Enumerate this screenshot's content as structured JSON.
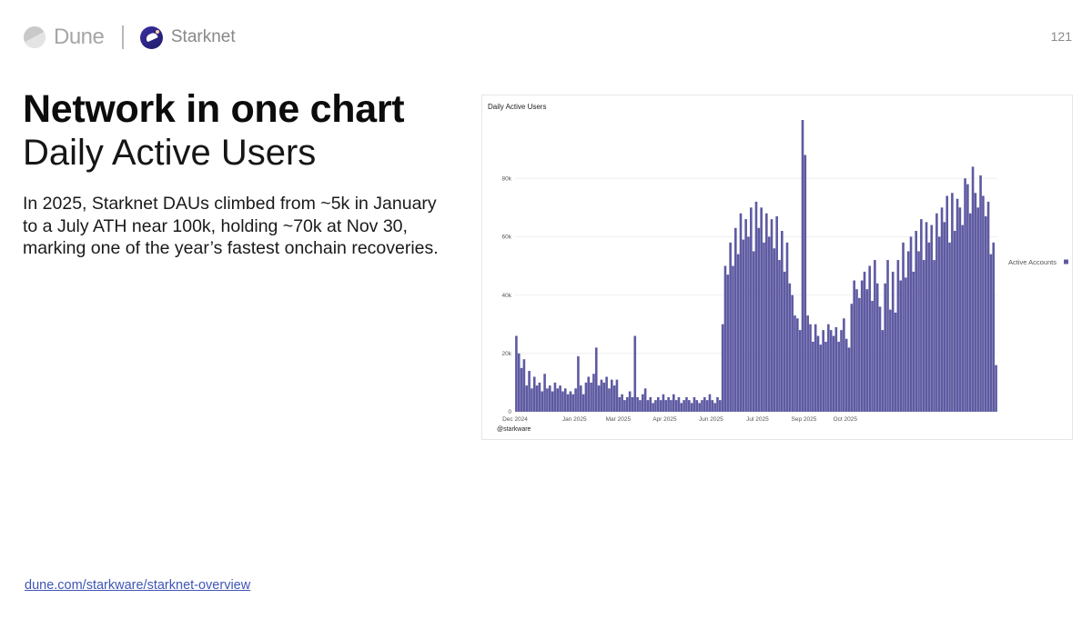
{
  "header": {
    "dune_label": "Dune",
    "starknet_label": "Starknet",
    "page_number": "121"
  },
  "slide": {
    "title": "Network in one chart",
    "subtitle": "Daily Active Users",
    "body_lines": [
      "In 2025, Starknet DAUs climbed from ~5k in January",
      "to a July ATH near 100k, holding ~70k at Nov 30,",
      "marking one of the year’s fastest onchain recoveries."
    ],
    "link": "dune.com/starkware/starknet-overview"
  },
  "colors": {
    "bar": "#5e5aa2",
    "grid": "#ececec"
  },
  "chart_data": {
    "type": "bar",
    "title": "Daily Active Users",
    "xlabel": "",
    "ylabel": "",
    "ylim": [
      0,
      100000
    ],
    "y_ticks": [
      0,
      20000,
      40000,
      60000,
      80000
    ],
    "y_tick_labels": [
      "0",
      "20k",
      "40k",
      "60k",
      "80k"
    ],
    "x_tick_labels": [
      "Dec 2024",
      "Jan 2025",
      "Mar 2025",
      "Apr 2025",
      "Jun 2025",
      "Jul 2025",
      "Sep 2025",
      "Oct 2025"
    ],
    "x_tick_category_index": [
      0,
      23,
      40,
      58,
      76,
      94,
      112,
      128
    ],
    "legend": "Active Accounts",
    "legend_position": "right",
    "grid": true,
    "credit": "@starkware",
    "series": [
      {
        "name": "Active Accounts",
        "values": [
          26000,
          20000,
          15000,
          18000,
          9000,
          14000,
          8000,
          12000,
          9000,
          10000,
          7000,
          13000,
          8000,
          9000,
          7000,
          10000,
          8000,
          9000,
          7000,
          8000,
          6000,
          7000,
          6000,
          8000,
          19000,
          9000,
          6000,
          10000,
          12000,
          10000,
          13000,
          22000,
          9000,
          11000,
          10000,
          12000,
          8000,
          11000,
          9000,
          11000,
          5000,
          6000,
          4000,
          5000,
          7000,
          5000,
          26000,
          5000,
          4000,
          6000,
          8000,
          4000,
          5000,
          3000,
          4000,
          5000,
          4000,
          6000,
          4000,
          5000,
          4000,
          6000,
          4000,
          5000,
          3000,
          4000,
          5000,
          4000,
          3000,
          5000,
          4000,
          3000,
          4000,
          5000,
          4000,
          6000,
          4000,
          3000,
          5000,
          4000,
          30000,
          50000,
          47000,
          58000,
          50000,
          63000,
          54000,
          68000,
          59000,
          66000,
          60000,
          70000,
          55000,
          72000,
          63000,
          70000,
          58000,
          68000,
          60000,
          66000,
          56000,
          67000,
          52000,
          62000,
          48000,
          58000,
          44000,
          40000,
          33000,
          32000,
          28000,
          100000,
          88000,
          33000,
          30000,
          24000,
          30000,
          26000,
          23000,
          28000,
          24000,
          30000,
          28000,
          26000,
          29000,
          24000,
          28000,
          32000,
          25000,
          22000,
          37000,
          45000,
          42000,
          39000,
          45000,
          48000,
          42000,
          50000,
          38000,
          52000,
          44000,
          36000,
          28000,
          44000,
          52000,
          35000,
          48000,
          34000,
          52000,
          45000,
          58000,
          46000,
          55000,
          60000,
          48000,
          62000,
          55000,
          66000,
          52000,
          65000,
          58000,
          64000,
          52000,
          68000,
          60000,
          70000,
          65000,
          74000,
          58000,
          75000,
          62000,
          73000,
          70000,
          64000,
          80000,
          78000,
          68000,
          84000,
          75000,
          70000,
          81000,
          74000,
          67000,
          72000,
          54000,
          58000,
          16000
        ]
      }
    ]
  }
}
